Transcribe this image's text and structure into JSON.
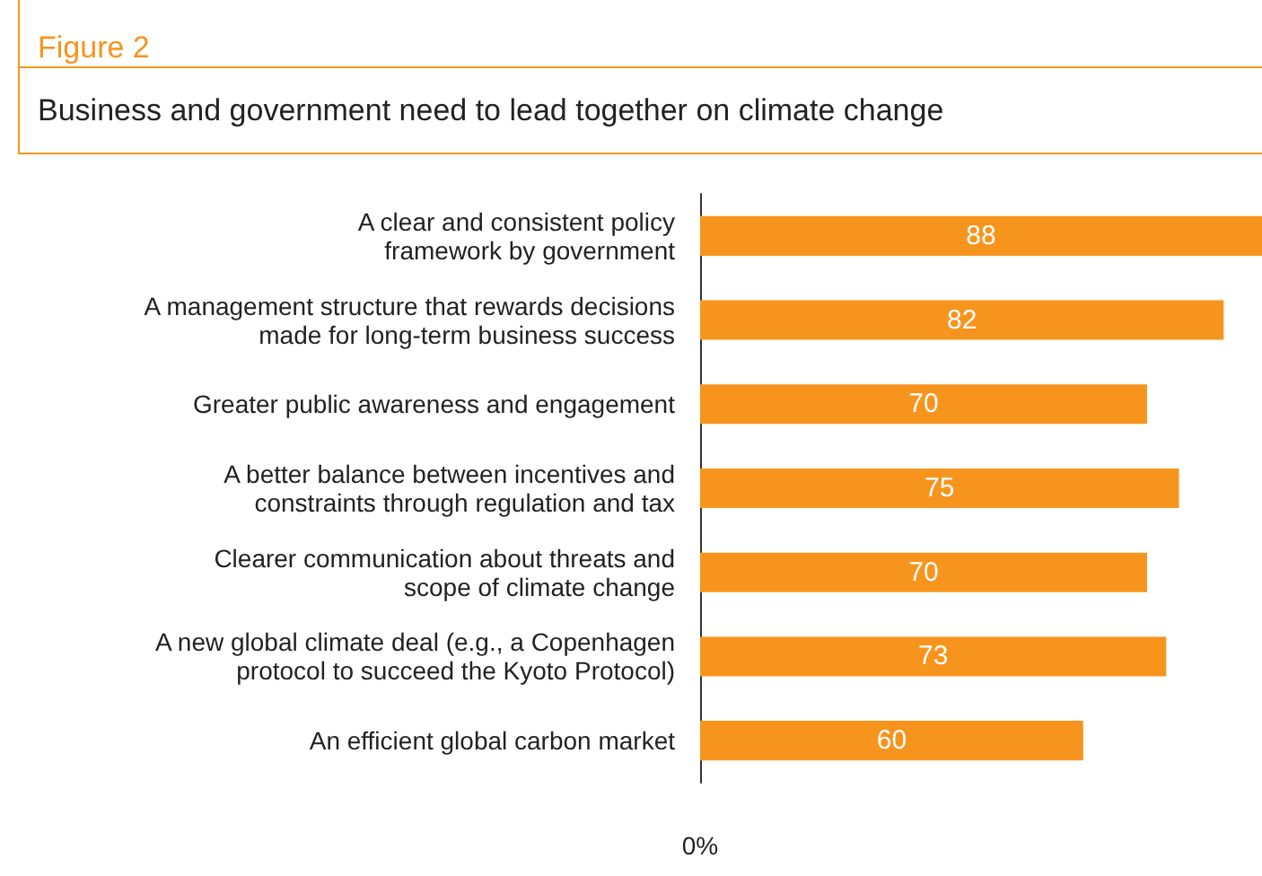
{
  "chart_data": {
    "type": "bar",
    "orientation": "horizontal",
    "title": "Figure 2",
    "subtitle": "Business and government need to lead together on climate change",
    "categories": [
      "A clear and consistent policy\nframework by government",
      "A management structure that rewards decisions\nmade for long-term business success",
      "Greater public awareness and engagement",
      "A better balance between incentives and\nconstraints through regulation and tax",
      "Clearer communication about threats and\nscope of climate change",
      "A new global climate deal (e.g., a Copenhagen\nprotocol to succeed the Kyoto Protocol)",
      "An efficient global carbon market"
    ],
    "values": [
      88,
      82,
      70,
      75,
      70,
      73,
      60
    ],
    "color": "#f7941d",
    "annotations": [
      "0%"
    ],
    "data_labels": true
  }
}
